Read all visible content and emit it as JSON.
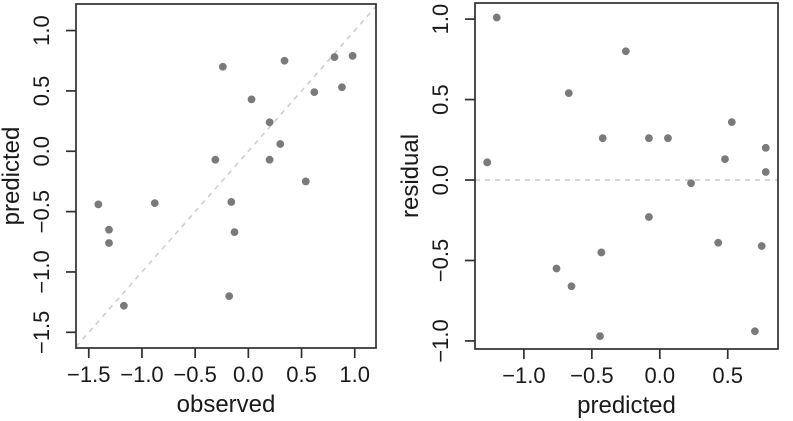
{
  "figure": {
    "background": "#ffffff",
    "point_color": "#7a7a7a",
    "axis_color": "#2f2f2f",
    "text_color": "#1a1a1a",
    "reference_line_color": "#cdcdcd"
  },
  "chart_data": [
    {
      "type": "scatter",
      "title": "",
      "xlabel": "observed",
      "ylabel": "predicted",
      "xlim": [
        -1.62,
        1.2
      ],
      "ylim": [
        -1.63,
        1.22
      ],
      "xticks": [
        -1.5,
        -1.0,
        -0.5,
        0.0,
        0.5,
        1.0
      ],
      "yticks": [
        -1.5,
        -1.0,
        -0.5,
        0.0,
        0.5,
        1.0
      ],
      "grid": false,
      "legend": false,
      "reference_line": {
        "kind": "identity",
        "style": "dashed"
      },
      "points": [
        [
          -0.24,
          0.7
        ],
        [
          0.34,
          0.75
        ],
        [
          0.81,
          0.78
        ],
        [
          0.98,
          0.79
        ],
        [
          0.88,
          0.53
        ],
        [
          0.62,
          0.49
        ],
        [
          0.03,
          0.43
        ],
        [
          0.2,
          0.24
        ],
        [
          0.3,
          0.06
        ],
        [
          0.2,
          -0.07
        ],
        [
          -0.31,
          -0.07
        ],
        [
          0.54,
          -0.25
        ],
        [
          -1.41,
          -0.44
        ],
        [
          -0.88,
          -0.43
        ],
        [
          -0.16,
          -0.42
        ],
        [
          -1.31,
          -0.65
        ],
        [
          -1.31,
          -0.76
        ],
        [
          -0.13,
          -0.67
        ],
        [
          -0.18,
          -1.2
        ],
        [
          -1.17,
          -1.28
        ]
      ]
    },
    {
      "type": "scatter",
      "title": "",
      "xlabel": "predicted",
      "ylabel": "residual",
      "xlim": [
        -1.36,
        0.87
      ],
      "ylim": [
        -1.05,
        1.1
      ],
      "xticks": [
        -1.0,
        -0.5,
        0.0,
        0.5
      ],
      "yticks": [
        -1.0,
        -0.5,
        0.0,
        0.5,
        1.0
      ],
      "grid": false,
      "legend": false,
      "reference_line": {
        "kind": "horizontal",
        "y": 0,
        "style": "dashed"
      },
      "points": [
        [
          -1.2,
          1.01
        ],
        [
          -0.25,
          0.8
        ],
        [
          -0.67,
          0.54
        ],
        [
          0.53,
          0.36
        ],
        [
          -0.42,
          0.26
        ],
        [
          -0.08,
          0.26
        ],
        [
          0.06,
          0.26
        ],
        [
          0.78,
          0.2
        ],
        [
          0.48,
          0.13
        ],
        [
          -1.27,
          0.11
        ],
        [
          0.78,
          0.05
        ],
        [
          0.23,
          -0.02
        ],
        [
          -0.08,
          -0.23
        ],
        [
          0.43,
          -0.39
        ],
        [
          0.75,
          -0.41
        ],
        [
          -0.43,
          -0.45
        ],
        [
          -0.76,
          -0.55
        ],
        [
          -0.65,
          -0.66
        ],
        [
          -0.44,
          -0.97
        ],
        [
          0.7,
          -0.94
        ]
      ]
    }
  ]
}
